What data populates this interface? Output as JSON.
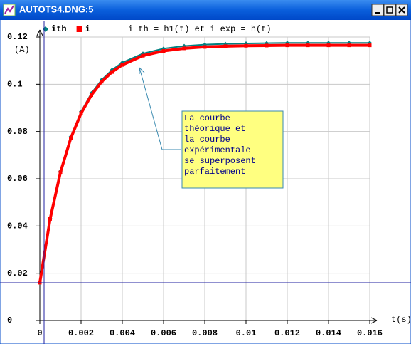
{
  "window": {
    "title": "AUTOTS4.DNG:5"
  },
  "chart_data": {
    "type": "line",
    "title": "i th = h1(t) et i exp = h(t)",
    "x_label": "t(s)",
    "y_label": "(A)",
    "x": [
      0,
      0.0005,
      0.001,
      0.0015,
      0.002,
      0.0025,
      0.003,
      0.0035,
      0.004,
      0.005,
      0.006,
      0.007,
      0.008,
      0.009,
      0.01,
      0.011,
      0.012,
      0.013,
      0.014,
      0.015,
      0.016
    ],
    "series": [
      {
        "name": "ith",
        "color": "#008080",
        "marker": "diamond",
        "values": [
          0.016,
          0.0432,
          0.0632,
          0.0778,
          0.0884,
          0.0962,
          0.1019,
          0.1061,
          0.1092,
          0.113,
          0.1151,
          0.1162,
          0.1168,
          0.1171,
          0.1173,
          0.1174,
          0.1175,
          0.1175,
          0.1175,
          0.1175,
          0.1175
        ]
      },
      {
        "name": "i",
        "color": "#ff0000",
        "marker": "square",
        "values": [
          0.016,
          0.043,
          0.0627,
          0.0771,
          0.0877,
          0.0954,
          0.1011,
          0.1052,
          0.1082,
          0.1121,
          0.1141,
          0.1152,
          0.1158,
          0.1161,
          0.1163,
          0.1164,
          0.1165,
          0.1165,
          0.1165,
          0.1165,
          0.1165
        ]
      }
    ],
    "xlim": [
      0,
      0.016
    ],
    "xticks": [
      0,
      0.002,
      0.004,
      0.006,
      0.008,
      0.01,
      0.012,
      0.014,
      0.016
    ],
    "ylim": [
      0,
      0.12
    ],
    "yticks": [
      0,
      0.02,
      0.04,
      0.06,
      0.08,
      0.1,
      0.12
    ],
    "grid": true,
    "annotation_lines": [
      "La courbe",
      "théorique et",
      "la courbe",
      "expérimentale",
      "se superposent",
      "parfaitement"
    ]
  }
}
